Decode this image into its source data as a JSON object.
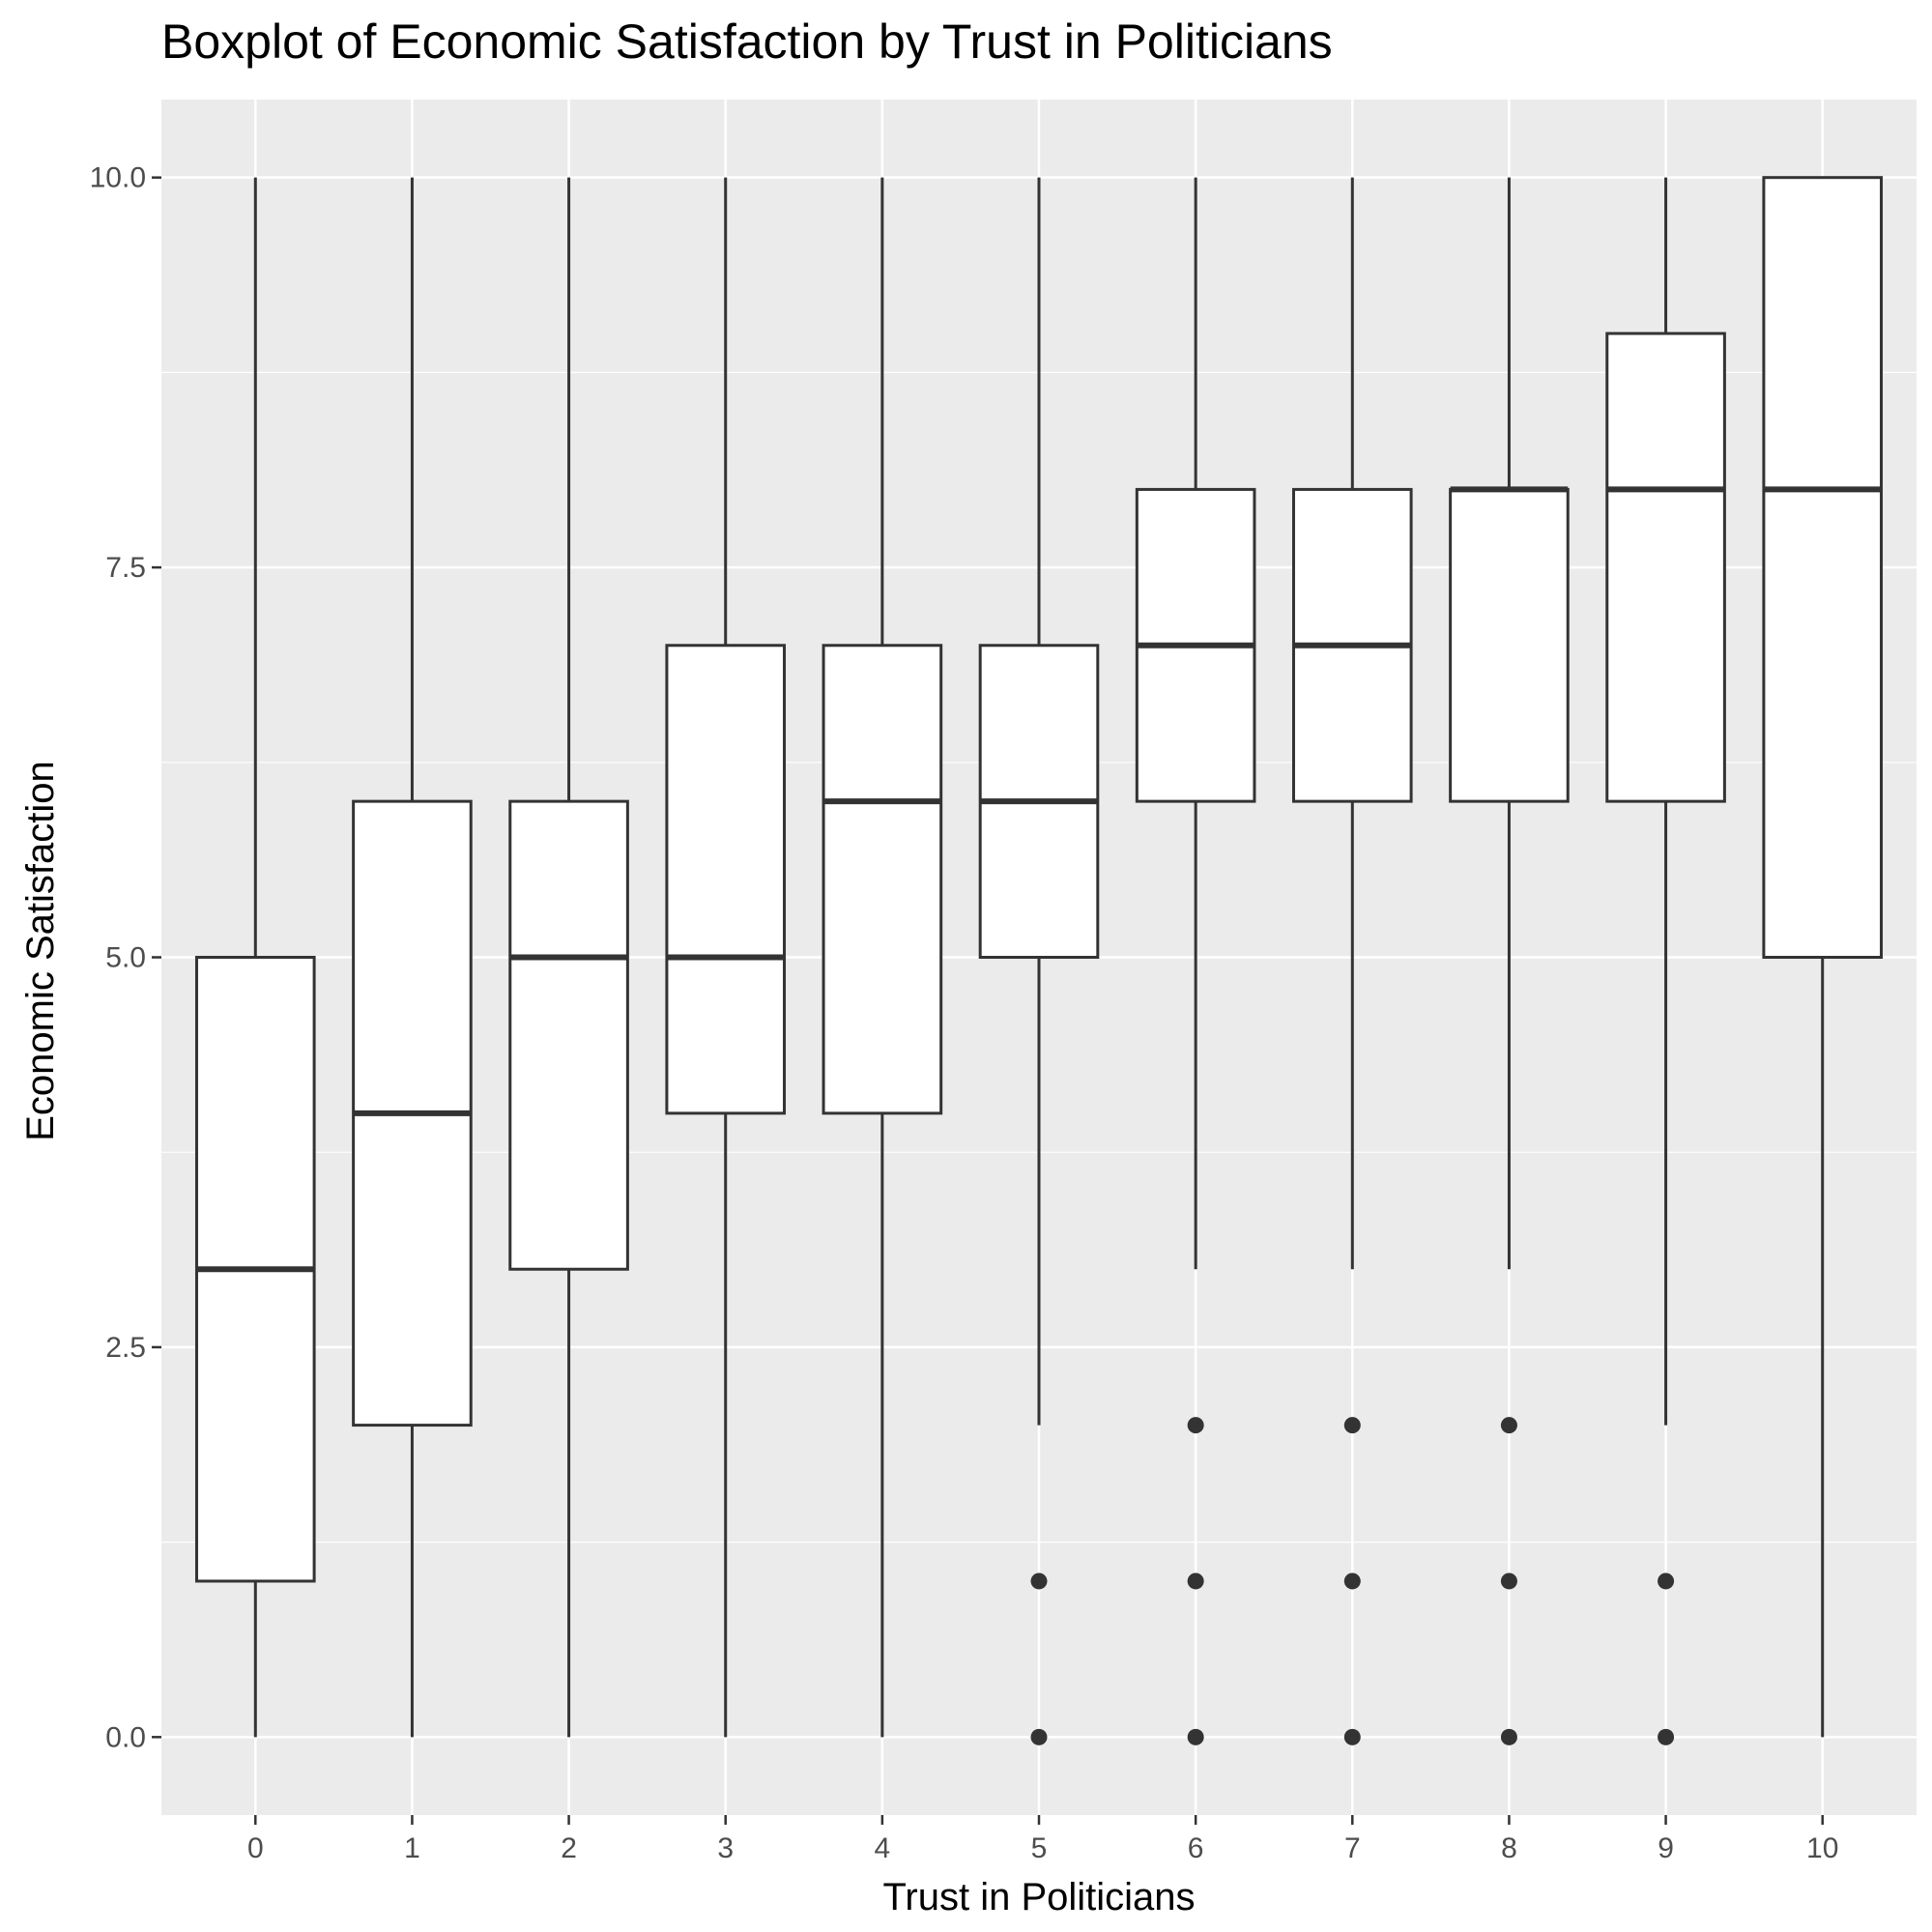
{
  "chart_data": {
    "type": "boxplot",
    "title": "Boxplot of Economic Satisfaction by  Trust in Politicians",
    "xlabel": "Trust in Politicians",
    "ylabel": "Economic Satisfaction",
    "ylim": [
      -0.5,
      10.5
    ],
    "y_ticks": [
      "0.0",
      "2.5",
      "5.0",
      "7.5",
      "10.0"
    ],
    "y_tick_values": [
      0,
      2.5,
      5,
      7.5,
      10
    ],
    "grid": true,
    "colors": {
      "panel": "#ebebeb",
      "grid": "#ffffff",
      "box_fill": "#ffffff",
      "box_line": "#333333",
      "outlier": "#333333",
      "tick": "#4d4d4d"
    },
    "categories": [
      "0",
      "1",
      "2",
      "3",
      "4",
      "5",
      "6",
      "7",
      "8",
      "9",
      "10"
    ],
    "boxes": [
      {
        "category": "0",
        "whisker_low": 0,
        "q1": 1,
        "median": 3,
        "q3": 5,
        "whisker_high": 10,
        "outliers": []
      },
      {
        "category": "1",
        "whisker_low": 0,
        "q1": 2,
        "median": 4,
        "q3": 6,
        "whisker_high": 10,
        "outliers": []
      },
      {
        "category": "2",
        "whisker_low": 0,
        "q1": 3,
        "median": 5,
        "q3": 6,
        "whisker_high": 10,
        "outliers": []
      },
      {
        "category": "3",
        "whisker_low": 0,
        "q1": 4,
        "median": 5,
        "q3": 7,
        "whisker_high": 10,
        "outliers": []
      },
      {
        "category": "4",
        "whisker_low": 0,
        "q1": 4,
        "median": 6,
        "q3": 7,
        "whisker_high": 10,
        "outliers": []
      },
      {
        "category": "5",
        "whisker_low": 2,
        "q1": 5,
        "median": 6,
        "q3": 7,
        "whisker_high": 10,
        "outliers": [
          1,
          0
        ]
      },
      {
        "category": "6",
        "whisker_low": 3,
        "q1": 6,
        "median": 7,
        "q3": 8,
        "whisker_high": 10,
        "outliers": [
          2,
          1,
          0
        ]
      },
      {
        "category": "7",
        "whisker_low": 3,
        "q1": 6,
        "median": 7,
        "q3": 8,
        "whisker_high": 10,
        "outliers": [
          2,
          1,
          0
        ]
      },
      {
        "category": "8",
        "whisker_low": 3,
        "q1": 6,
        "median": 8,
        "q3": 8,
        "whisker_high": 10,
        "outliers": [
          2,
          1,
          0
        ]
      },
      {
        "category": "9",
        "whisker_low": 2,
        "q1": 6,
        "median": 8,
        "q3": 9,
        "whisker_high": 10,
        "outliers": [
          1,
          0
        ]
      },
      {
        "category": "10",
        "whisker_low": 0,
        "q1": 5,
        "median": 8,
        "q3": 10,
        "whisker_high": 10,
        "outliers": []
      }
    ]
  }
}
